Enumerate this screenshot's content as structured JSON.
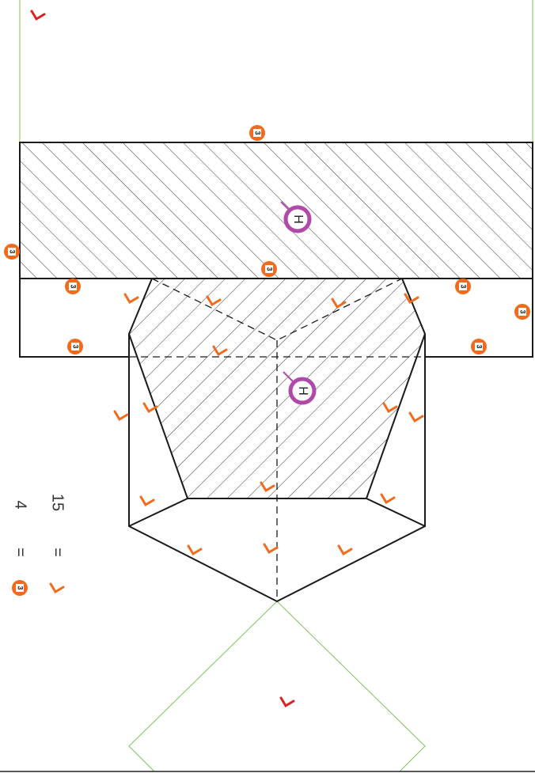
{
  "badges": [
    "3",
    "3",
    "3",
    "3",
    "3",
    "3",
    "3",
    "3",
    "3"
  ],
  "h_labels": [
    "H",
    "H"
  ],
  "legend": [
    {
      "symbol": "3",
      "equals": "=",
      "count": 4
    },
    {
      "equals": "=",
      "count": 15
    }
  ]
}
